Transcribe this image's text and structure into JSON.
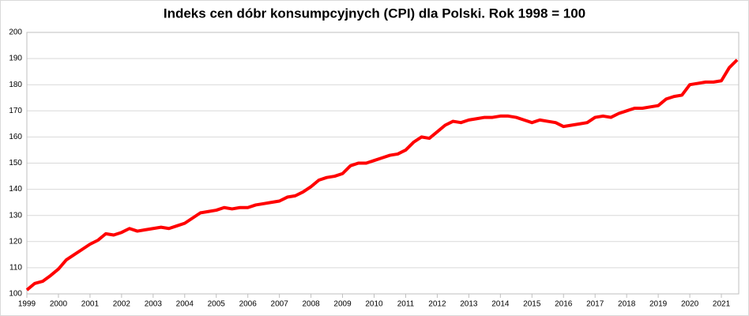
{
  "chart_data": {
    "type": "line",
    "title": "Indeks cen dóbr konsumpcyjnych (CPI) dla Polski. Rok 1998 = 100",
    "x": [
      1999,
      1999.25,
      1999.5,
      1999.75,
      2000,
      2000.25,
      2000.5,
      2000.75,
      2001,
      2001.25,
      2001.5,
      2001.75,
      2002,
      2002.25,
      2002.5,
      2002.75,
      2003,
      2003.25,
      2003.5,
      2003.75,
      2004,
      2004.25,
      2004.5,
      2004.75,
      2005,
      2005.25,
      2005.5,
      2005.75,
      2006,
      2006.25,
      2006.5,
      2006.75,
      2007,
      2007.25,
      2007.5,
      2007.75,
      2008,
      2008.25,
      2008.5,
      2008.75,
      2009,
      2009.25,
      2009.5,
      2009.75,
      2010,
      2010.25,
      2010.5,
      2010.75,
      2011,
      2011.25,
      2011.5,
      2011.75,
      2012,
      2012.25,
      2012.5,
      2012.75,
      2013,
      2013.25,
      2013.5,
      2013.75,
      2014,
      2014.25,
      2014.5,
      2014.75,
      2015,
      2015.25,
      2015.5,
      2015.75,
      2016,
      2016.25,
      2016.5,
      2016.75,
      2017,
      2017.25,
      2017.5,
      2017.75,
      2018,
      2018.25,
      2018.5,
      2018.75,
      2019,
      2019.25,
      2019.5,
      2019.75,
      2020,
      2020.25,
      2020.5,
      2020.75,
      2021,
      2021.25,
      2021.5
    ],
    "series": [
      {
        "color": "#ff0000",
        "values": [
          101.5,
          104,
          104.8,
          107,
          109.5,
          113,
          115,
          117,
          119,
          120.5,
          123,
          122.5,
          123.5,
          125,
          124,
          124.5,
          125,
          125.5,
          125,
          126,
          127,
          129,
          131,
          131.5,
          132,
          133,
          132.5,
          133,
          133,
          134,
          134.5,
          135,
          135.5,
          137,
          137.5,
          139,
          141,
          143.5,
          144.5,
          145,
          146,
          149,
          150,
          150,
          151,
          152,
          153,
          153.5,
          155,
          158,
          160,
          159.5,
          162,
          164.5,
          166,
          165.5,
          166.5,
          167,
          167.5,
          167.5,
          168,
          168,
          167.5,
          166.5,
          165.5,
          166.5,
          166,
          165.5,
          164,
          164.5,
          165,
          165.5,
          167.5,
          168,
          167.5,
          169,
          170,
          171,
          171,
          171.5,
          172,
          174.5,
          175.5,
          176,
          180,
          180.5,
          181,
          181,
          181.5,
          186.5,
          189.5
        ]
      }
    ],
    "xlim": [
      1999,
      2021.55
    ],
    "xticks": [
      1999,
      2000,
      2001,
      2002,
      2003,
      2004,
      2005,
      2006,
      2007,
      2008,
      2009,
      2010,
      2011,
      2012,
      2013,
      2014,
      2015,
      2016,
      2017,
      2018,
      2019,
      2020,
      2021
    ],
    "ylim": [
      100,
      200
    ],
    "yticks": [
      100,
      110,
      120,
      130,
      140,
      150,
      160,
      170,
      180,
      190,
      200
    ],
    "grid": true
  }
}
